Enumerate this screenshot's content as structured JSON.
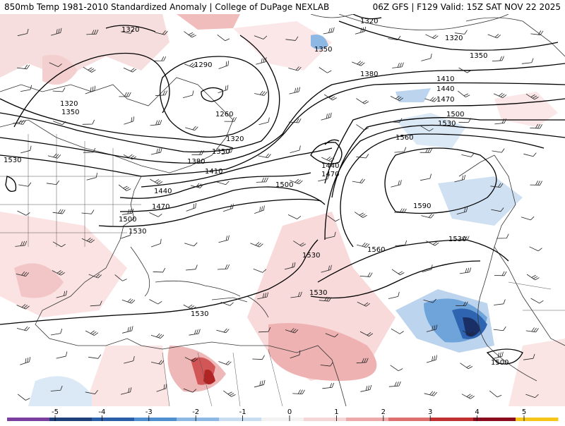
{
  "header": {
    "left_title": "850mb Temp 1981-2010 Standardized Anomaly | College of DuPage NEXLAB",
    "right_title": "06Z GFS | F129 Valid: 15Z SAT NOV 22 2025"
  },
  "contour_labels": [
    "1320",
    "1290",
    "1260",
    "1350",
    "1380",
    "1410",
    "1440",
    "1470",
    "1500",
    "1530",
    "1560",
    "1590"
  ],
  "colorbar": {
    "ticks": [
      "-5",
      "-4",
      "-3",
      "-2",
      "-1",
      "0",
      "1",
      "2",
      "3",
      "4",
      "5"
    ],
    "colors": [
      "#7a3f9e",
      "#1f3f7a",
      "#2a5ea8",
      "#4f8fd0",
      "#8db8e4",
      "#c9ddf1",
      "#f2f2f2",
      "#f4d6d6",
      "#ecaaaa",
      "#dd6f6f",
      "#c13030",
      "#8a0a1e",
      "#f5c518"
    ]
  }
}
